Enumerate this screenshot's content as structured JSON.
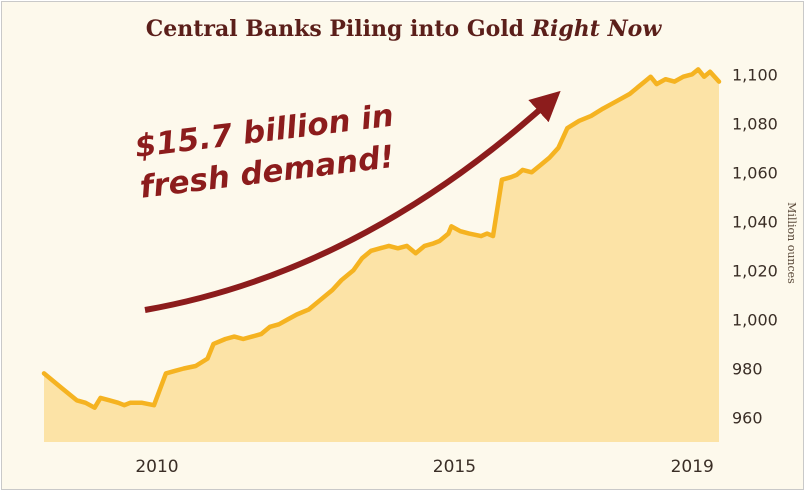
{
  "title": {
    "main": "Central Banks Piling into Gold ",
    "emphasis": "Right Now"
  },
  "colors": {
    "background": "#fdf9ec",
    "line": "#f5b321",
    "area": "#fce3a6",
    "title": "#5b1f1a",
    "annotation": "#8c1c1c",
    "arrow": "#8c1c1c"
  },
  "chart_data": {
    "type": "area",
    "title": "Central Banks Piling into Gold Right Now",
    "ylabel": "Million ounces",
    "xlabel": "",
    "xlim": [
      2008.1,
      2019.45
    ],
    "ylim": [
      950,
      1105
    ],
    "x_ticks": [
      2010,
      2015,
      2019
    ],
    "x_tick_labels": [
      "2010",
      "2015",
      "2019"
    ],
    "y_ticks": [
      960,
      980,
      1000,
      1020,
      1040,
      1060,
      1080,
      1100
    ],
    "y_tick_labels": [
      "960",
      "980",
      "1,000",
      "1,020",
      "1,040",
      "1,060",
      "1,080",
      "1,100"
    ],
    "grid": false,
    "annotation": {
      "lines": [
        "$15.7 billion in",
        "fresh demand!"
      ]
    },
    "series": [
      {
        "x": [
          2008.1,
          2008.4,
          2008.65,
          2008.8,
          2008.95,
          2009.05,
          2009.2,
          2009.35,
          2009.45,
          2009.55,
          2009.75,
          2009.95,
          2010.15,
          2010.3,
          2010.45,
          2010.65,
          2010.85,
          2010.95,
          2011.05,
          2011.15,
          2011.3,
          2011.45,
          2011.6,
          2011.75,
          2011.9,
          2012.05,
          2012.2,
          2012.35,
          2012.55,
          2012.75,
          2012.95,
          2013.1,
          2013.3,
          2013.45,
          2013.6,
          2013.75,
          2013.9,
          2014.05,
          2014.2,
          2014.35,
          2014.5,
          2014.65,
          2014.75,
          2014.9,
          2014.95,
          2015.1,
          2015.25,
          2015.45,
          2015.55,
          2015.65,
          2015.8,
          2015.95,
          2016.05,
          2016.15,
          2016.3,
          2016.45,
          2016.6,
          2016.75,
          2016.9,
          2017.1,
          2017.3,
          2017.5,
          2017.65,
          2017.8,
          2017.95,
          2018.1,
          2018.2,
          2018.3,
          2018.4,
          2018.55,
          2018.7,
          2018.85,
          2019.0,
          2019.1,
          2019.2,
          2019.3,
          2019.45
        ],
        "values": [
          978,
          972,
          967,
          966,
          964,
          968,
          967,
          966,
          965,
          966,
          966,
          965,
          978,
          979,
          980,
          981,
          984,
          990,
          991,
          992,
          993,
          992,
          993,
          994,
          997,
          998,
          1000,
          1002,
          1004,
          1008,
          1012,
          1016,
          1020,
          1025,
          1028,
          1029,
          1030,
          1029,
          1030,
          1027,
          1030,
          1031,
          1032,
          1035,
          1038,
          1036,
          1035,
          1034,
          1035,
          1034,
          1057,
          1058,
          1059,
          1061,
          1060,
          1063,
          1066,
          1070,
          1078,
          1081,
          1083,
          1086,
          1088,
          1090,
          1092,
          1095,
          1097,
          1099,
          1096,
          1098,
          1097,
          1099,
          1100,
          1102,
          1099,
          1101,
          1097
        ]
      }
    ]
  }
}
